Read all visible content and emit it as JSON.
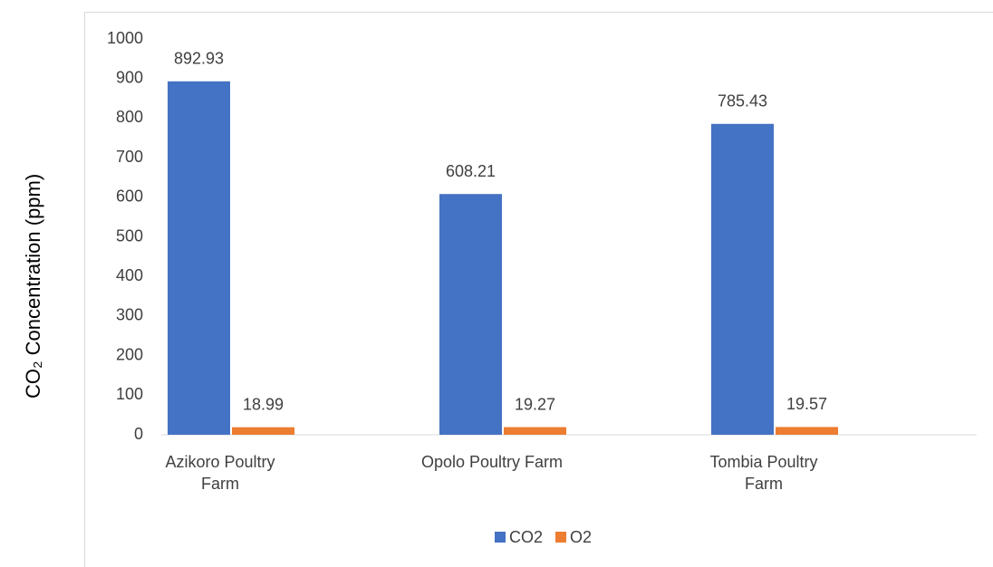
{
  "chart_data": {
    "type": "bar",
    "y_label": "CO₂ Concentration (ppm)",
    "categories": [
      "Azikoro Poultry Farm",
      "Opolo Poultry Farm",
      "Tombia Poultry Farm"
    ],
    "series": [
      {
        "name": "CO2",
        "color": "#4472c4",
        "values": [
          892.93,
          608.21,
          785.43
        ]
      },
      {
        "name": "O2",
        "color": "#ed7d31",
        "values": [
          18.99,
          19.27,
          19.57
        ]
      }
    ],
    "ylim": [
      0,
      1000
    ],
    "yticks": [
      0,
      100,
      200,
      300,
      400,
      500,
      600,
      700,
      800,
      900,
      1000
    ],
    "grid": false,
    "legend": "bottom"
  }
}
